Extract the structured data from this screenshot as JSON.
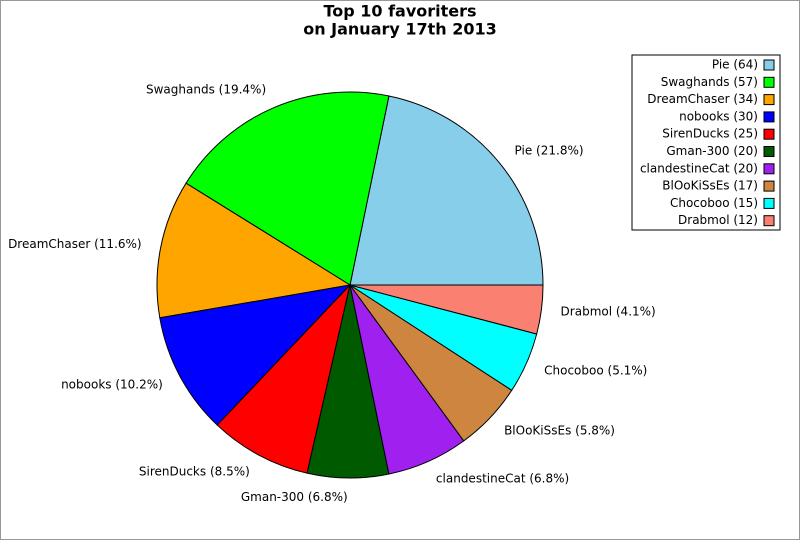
{
  "chart_data": {
    "type": "pie",
    "title": [
      "Top 10 favoriters",
      "on January 17th 2013"
    ],
    "values": [
      64,
      57,
      34,
      30,
      25,
      20,
      20,
      17,
      15,
      12
    ],
    "labels": [
      "Pie (21.8%)",
      "Swaghands (19.4%)",
      "DreamChaser (11.6%)",
      "nobooks (10.2%)",
      "SirenDucks (8.5%)",
      "Gman-300 (6.8%)",
      "clandestineCat (6.8%)",
      "BlOoKiSsEs (5.8%)",
      "Chocoboo (5.1%)",
      "Drabmol (4.1%)"
    ],
    "legend_labels": [
      "Pie (64)",
      "Swaghands (57)",
      "DreamChaser (34)",
      "nobooks (30)",
      "SirenDucks (25)",
      "Gman-300 (20)",
      "clandestineCat (20)",
      "BlOoKiSsEs (17)",
      "Chocoboo (15)",
      "Drabmol (12)"
    ],
    "colors": [
      "#87ceeb",
      "#00ff00",
      "#ffa500",
      "#0000ff",
      "#ff0000",
      "#005a00",
      "#a020f0",
      "#cd853f",
      "#00ffff",
      "#fa8072"
    ],
    "start_angle": 0,
    "direction": "counterclockwise",
    "legend": "upper right"
  }
}
